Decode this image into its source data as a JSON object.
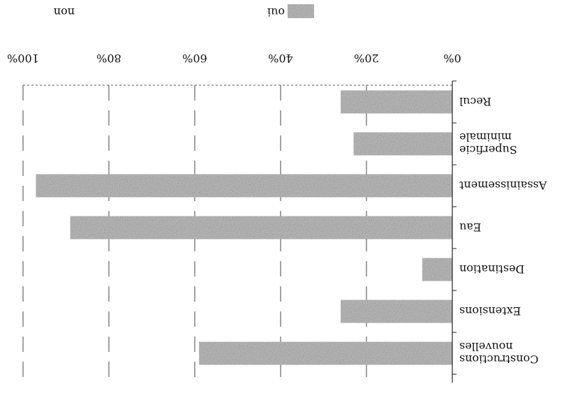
{
  "chart_data": {
    "type": "bar",
    "orientation": "horizontal",
    "rendered_rotation": 180,
    "categories": [
      "Constructions nouvelles",
      "Extensions",
      "Destination",
      "Eau",
      "Assainissement",
      "Superficie minimale",
      "Recul"
    ],
    "series": [
      {
        "name": "oui",
        "values": [
          59,
          26,
          7,
          89,
          97,
          23,
          26
        ]
      },
      {
        "name": "non",
        "values": [
          41,
          74,
          93,
          11,
          3,
          77,
          74
        ]
      }
    ],
    "xlim": [
      0,
      100
    ],
    "tick_labels": [
      "0%",
      "20%",
      "40%",
      "60%",
      "80%",
      "100%"
    ],
    "grid": true,
    "legend_position": "top",
    "stacked": true
  },
  "colors": {
    "oui": "#b8b8b8",
    "non": "#ffffff",
    "axis": "#222222",
    "grid": "#444444"
  }
}
